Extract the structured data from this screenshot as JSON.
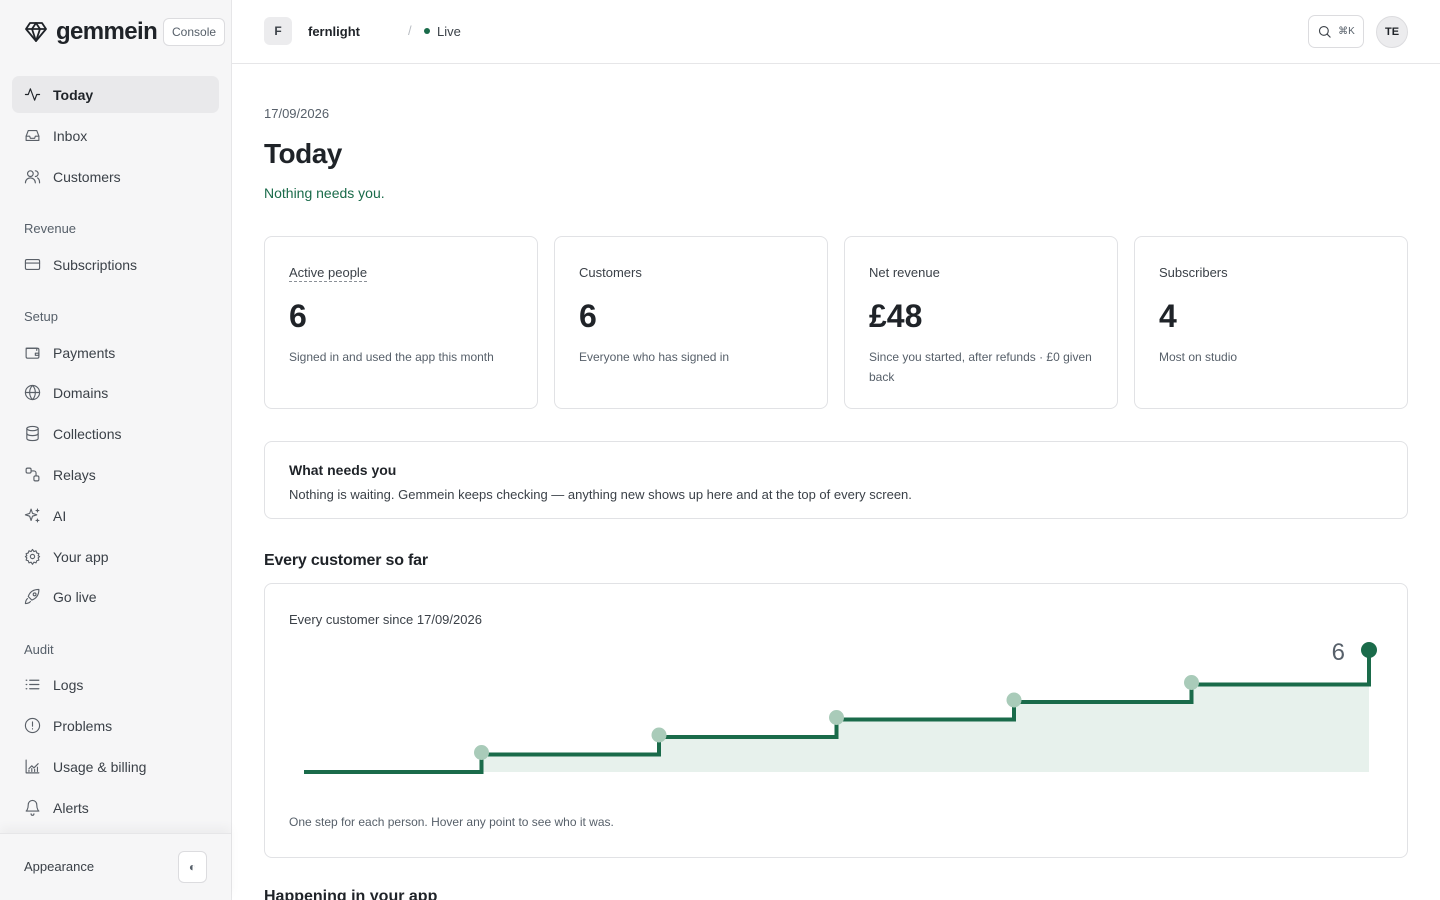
{
  "brand": {
    "name": "gemmein",
    "console_label": "Console"
  },
  "sidebar": {
    "items": [
      {
        "label": "Today",
        "icon": "activity-icon",
        "active": true
      },
      {
        "label": "Inbox",
        "icon": "inbox-icon"
      },
      {
        "label": "Customers",
        "icon": "users-icon"
      }
    ],
    "sections": [
      {
        "label": "Revenue",
        "items": [
          {
            "label": "Subscriptions",
            "icon": "credit-card-icon"
          }
        ]
      },
      {
        "label": "Setup",
        "items": [
          {
            "label": "Payments",
            "icon": "wallet-icon"
          },
          {
            "label": "Domains",
            "icon": "globe-icon"
          },
          {
            "label": "Collections",
            "icon": "database-icon"
          },
          {
            "label": "Relays",
            "icon": "relay-icon"
          },
          {
            "label": "AI",
            "icon": "sparkles-icon"
          },
          {
            "label": "Your app",
            "icon": "gear-icon"
          },
          {
            "label": "Go live",
            "icon": "rocket-icon"
          }
        ]
      },
      {
        "label": "Audit",
        "items": [
          {
            "label": "Logs",
            "icon": "list-icon"
          },
          {
            "label": "Problems",
            "icon": "alert-circle-icon"
          },
          {
            "label": "Usage & billing",
            "icon": "chart-icon"
          },
          {
            "label": "Alerts",
            "icon": "bell-icon"
          }
        ]
      }
    ],
    "appearance_label": "Appearance",
    "theme_toggle_glyph": "◐"
  },
  "topbar": {
    "project_initial": "F",
    "project_name": "fernlight",
    "separator": "/",
    "status": "Live",
    "status_color": "#1a6b4a",
    "search_shortcut": "⌘K",
    "user_initials": "TE"
  },
  "main": {
    "date": "17/09/2026",
    "title": "Today",
    "status_text": "Nothing needs you.",
    "cards": [
      {
        "title": "Active people",
        "value": "6",
        "desc": "Signed in and used the app this month"
      },
      {
        "title": "Customers",
        "value": "6",
        "desc": "Everyone who has signed in"
      },
      {
        "title": "Net revenue",
        "value": "£48",
        "desc": "Since you started, after refunds · £0 given back"
      },
      {
        "title": "Subscribers",
        "value": "4",
        "desc": "Most on studio"
      }
    ],
    "needs": {
      "title": "What needs you",
      "body": "Nothing is waiting. Gemmein keeps checking — anything new shows up here and at the top of every screen."
    },
    "customers_section": "Every customer so far",
    "next_section": "Happening in your app"
  },
  "chart_data": {
    "type": "line",
    "title": "Every customer since 17/09/2026",
    "step": true,
    "x": [
      0,
      1,
      2,
      3,
      4,
      5,
      6
    ],
    "y": [
      0,
      1,
      2,
      3,
      4,
      5,
      6
    ],
    "end_label": "6",
    "ylim": [
      0,
      6
    ],
    "footnote": "One step for each person. Hover any point to see who it was.",
    "line_color": "#1a6b4a",
    "fill_color": "#e7f1ec",
    "point_color": "#a9cbb9",
    "grid": false
  }
}
